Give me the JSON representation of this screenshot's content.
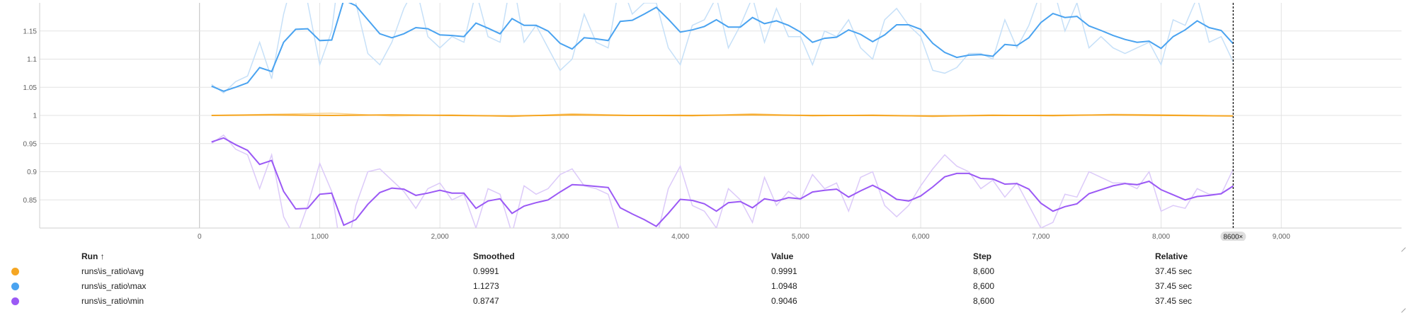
{
  "chart_data": {
    "type": "line",
    "x_axis": {
      "ticks": [
        0,
        1000,
        2000,
        3000,
        4000,
        5000,
        6000,
        7000,
        8000,
        9000
      ],
      "tick_labels": [
        "0",
        "1,000",
        "2,000",
        "3,000",
        "4,000",
        "5,000",
        "6,000",
        "7,000",
        "8,000",
        "9,000"
      ],
      "range": [
        -1330,
        10000
      ]
    },
    "y_axis": {
      "ticks": [
        0.85,
        0.9,
        0.95,
        1,
        1.05,
        1.1,
        1.15
      ],
      "tick_labels": [
        "0.85",
        "0.9",
        "0.95",
        "1",
        "1.05",
        "1.1",
        "1.15"
      ],
      "range": [
        0.8,
        1.2
      ]
    },
    "grid": true,
    "cursor": {
      "step": 8600,
      "badge_label": "8600",
      "close_glyph": "×"
    },
    "series": [
      {
        "name": "runs\\is_ratio\\avg",
        "color": "#f5a623",
        "raw_color": "#fbd38d",
        "x": [
          100,
          600,
          1100,
          1600,
          2100,
          2600,
          3100,
          3600,
          4100,
          4600,
          5100,
          5600,
          6100,
          6600,
          7100,
          7600,
          8100,
          8600
        ],
        "smoothed": [
          1.0,
          1.001,
          1.0,
          1.001,
          1.0,
          0.999,
          1.001,
          1.0,
          1.0,
          1.001,
          1.0,
          1.0,
          0.999,
          1.0,
          1.0,
          1.001,
          1.0,
          0.9991
        ],
        "raw": [
          1.0,
          1.002,
          1.004,
          0.999,
          1.001,
          0.998,
          1.003,
          1.0,
          0.999,
          1.003,
          0.999,
          1.001,
          0.998,
          1.001,
          0.999,
          1.002,
          1.001,
          0.9991
        ]
      },
      {
        "name": "runs\\is_ratio\\max",
        "color": "#4aa3f0",
        "raw_color": "#c6e0f8",
        "x": [
          100,
          200,
          300,
          400,
          500,
          600,
          700,
          800,
          900,
          1000,
          1100,
          1200,
          1300,
          1400,
          1500,
          1600,
          1700,
          1800,
          1900,
          2000,
          2100,
          2200,
          2300,
          2400,
          2500,
          2600,
          2700,
          2800,
          2900,
          3000,
          3100,
          3200,
          3300,
          3400,
          3500,
          3600,
          3700,
          3800,
          3900,
          4000,
          4100,
          4200,
          4300,
          4400,
          4500,
          4600,
          4700,
          4800,
          4900,
          5000,
          5100,
          5200,
          5300,
          5400,
          5500,
          5600,
          5700,
          5800,
          5900,
          6000,
          6100,
          6200,
          6300,
          6400,
          6500,
          6600,
          6700,
          6800,
          6900,
          7000,
          7100,
          7200,
          7300,
          7400,
          7500,
          7600,
          7700,
          7800,
          7900,
          8000,
          8100,
          8200,
          8300,
          8400,
          8500,
          8600
        ],
        "smoothed": [
          1.052,
          1.043,
          1.05,
          1.058,
          1.085,
          1.078,
          1.13,
          1.153,
          1.154,
          1.133,
          1.134,
          1.205,
          1.195,
          1.17,
          1.145,
          1.138,
          1.145,
          1.156,
          1.154,
          1.143,
          1.142,
          1.14,
          1.164,
          1.155,
          1.145,
          1.172,
          1.16,
          1.16,
          1.15,
          1.128,
          1.118,
          1.138,
          1.136,
          1.133,
          1.167,
          1.169,
          1.18,
          1.192,
          1.171,
          1.148,
          1.152,
          1.158,
          1.17,
          1.157,
          1.157,
          1.174,
          1.163,
          1.168,
          1.16,
          1.148,
          1.13,
          1.137,
          1.139,
          1.152,
          1.144,
          1.131,
          1.143,
          1.161,
          1.161,
          1.153,
          1.128,
          1.112,
          1.103,
          1.107,
          1.108,
          1.105,
          1.126,
          1.124,
          1.138,
          1.165,
          1.181,
          1.174,
          1.176,
          1.159,
          1.151,
          1.142,
          1.135,
          1.13,
          1.132,
          1.119,
          1.14,
          1.152,
          1.168,
          1.156,
          1.151,
          1.1273
        ],
        "raw": [
          1.055,
          1.04,
          1.06,
          1.07,
          1.13,
          1.065,
          1.18,
          1.26,
          1.2,
          1.09,
          1.15,
          1.32,
          1.2,
          1.11,
          1.09,
          1.13,
          1.19,
          1.23,
          1.14,
          1.12,
          1.14,
          1.13,
          1.22,
          1.14,
          1.13,
          1.25,
          1.13,
          1.16,
          1.12,
          1.08,
          1.1,
          1.18,
          1.13,
          1.12,
          1.24,
          1.18,
          1.2,
          1.2,
          1.12,
          1.09,
          1.16,
          1.17,
          1.21,
          1.12,
          1.16,
          1.21,
          1.13,
          1.19,
          1.14,
          1.14,
          1.09,
          1.15,
          1.14,
          1.17,
          1.12,
          1.1,
          1.17,
          1.19,
          1.16,
          1.14,
          1.08,
          1.075,
          1.085,
          1.11,
          1.11,
          1.1,
          1.17,
          1.12,
          1.16,
          1.22,
          1.23,
          1.15,
          1.2,
          1.12,
          1.14,
          1.12,
          1.11,
          1.12,
          1.13,
          1.09,
          1.17,
          1.16,
          1.21,
          1.13,
          1.14,
          1.0948
        ]
      },
      {
        "name": "runs\\is_ratio\\min",
        "color": "#9b59f5",
        "raw_color": "#dccaf9",
        "x": [
          100,
          200,
          300,
          400,
          500,
          600,
          700,
          800,
          900,
          1000,
          1100,
          1200,
          1300,
          1400,
          1500,
          1600,
          1700,
          1800,
          1900,
          2000,
          2100,
          2200,
          2300,
          2400,
          2500,
          2600,
          2700,
          2800,
          2900,
          3000,
          3100,
          3200,
          3300,
          3400,
          3500,
          3600,
          3700,
          3800,
          3900,
          4000,
          4100,
          4200,
          4300,
          4400,
          4500,
          4600,
          4700,
          4800,
          4900,
          5000,
          5100,
          5200,
          5300,
          5400,
          5500,
          5600,
          5700,
          5800,
          5900,
          6000,
          6100,
          6200,
          6300,
          6400,
          6500,
          6600,
          6700,
          6800,
          6900,
          7000,
          7100,
          7200,
          7300,
          7400,
          7500,
          7600,
          7700,
          7800,
          7900,
          8000,
          8100,
          8200,
          8300,
          8400,
          8500,
          8600
        ],
        "smoothed": [
          0.953,
          0.96,
          0.948,
          0.938,
          0.913,
          0.92,
          0.865,
          0.834,
          0.835,
          0.86,
          0.862,
          0.805,
          0.815,
          0.842,
          0.863,
          0.871,
          0.869,
          0.858,
          0.862,
          0.867,
          0.862,
          0.862,
          0.835,
          0.848,
          0.852,
          0.826,
          0.839,
          0.845,
          0.85,
          0.864,
          0.877,
          0.876,
          0.874,
          0.872,
          0.836,
          0.825,
          0.815,
          0.803,
          0.826,
          0.851,
          0.849,
          0.843,
          0.83,
          0.845,
          0.847,
          0.836,
          0.852,
          0.848,
          0.854,
          0.852,
          0.864,
          0.867,
          0.869,
          0.855,
          0.866,
          0.876,
          0.865,
          0.851,
          0.848,
          0.857,
          0.873,
          0.891,
          0.897,
          0.897,
          0.888,
          0.887,
          0.878,
          0.879,
          0.869,
          0.844,
          0.83,
          0.838,
          0.843,
          0.861,
          0.868,
          0.875,
          0.879,
          0.877,
          0.883,
          0.868,
          0.859,
          0.85,
          0.856,
          0.858,
          0.861,
          0.8747
        ],
        "raw": [
          0.95,
          0.965,
          0.94,
          0.93,
          0.87,
          0.93,
          0.82,
          0.78,
          0.84,
          0.915,
          0.865,
          0.73,
          0.84,
          0.9,
          0.905,
          0.885,
          0.865,
          0.835,
          0.87,
          0.88,
          0.85,
          0.86,
          0.8,
          0.87,
          0.86,
          0.79,
          0.875,
          0.86,
          0.87,
          0.895,
          0.905,
          0.875,
          0.87,
          0.86,
          0.79,
          0.8,
          0.79,
          0.78,
          0.87,
          0.91,
          0.84,
          0.83,
          0.8,
          0.87,
          0.85,
          0.81,
          0.89,
          0.84,
          0.865,
          0.85,
          0.895,
          0.87,
          0.88,
          0.83,
          0.89,
          0.9,
          0.84,
          0.82,
          0.84,
          0.875,
          0.905,
          0.93,
          0.91,
          0.9,
          0.87,
          0.885,
          0.855,
          0.88,
          0.84,
          0.8,
          0.81,
          0.86,
          0.855,
          0.9,
          0.89,
          0.88,
          0.88,
          0.87,
          0.9,
          0.83,
          0.84,
          0.835,
          0.87,
          0.86,
          0.86,
          0.9046
        ]
      }
    ]
  },
  "legend": {
    "headers": {
      "run": "Run ↑",
      "smoothed": "Smoothed",
      "value": "Value",
      "step": "Step",
      "relative": "Relative"
    },
    "rows": [
      {
        "run": "runs\\is_ratio\\avg",
        "color": "#f5a623",
        "smoothed": "0.9991",
        "value": "0.9991",
        "step": "8,600",
        "relative": "37.45 sec"
      },
      {
        "run": "runs\\is_ratio\\max",
        "color": "#4aa3f0",
        "smoothed": "1.1273",
        "value": "1.0948",
        "step": "8,600",
        "relative": "37.45 sec"
      },
      {
        "run": "runs\\is_ratio\\min",
        "color": "#9b59f5",
        "smoothed": "0.8747",
        "value": "0.9046",
        "step": "8,600",
        "relative": "37.45 sec"
      }
    ]
  }
}
